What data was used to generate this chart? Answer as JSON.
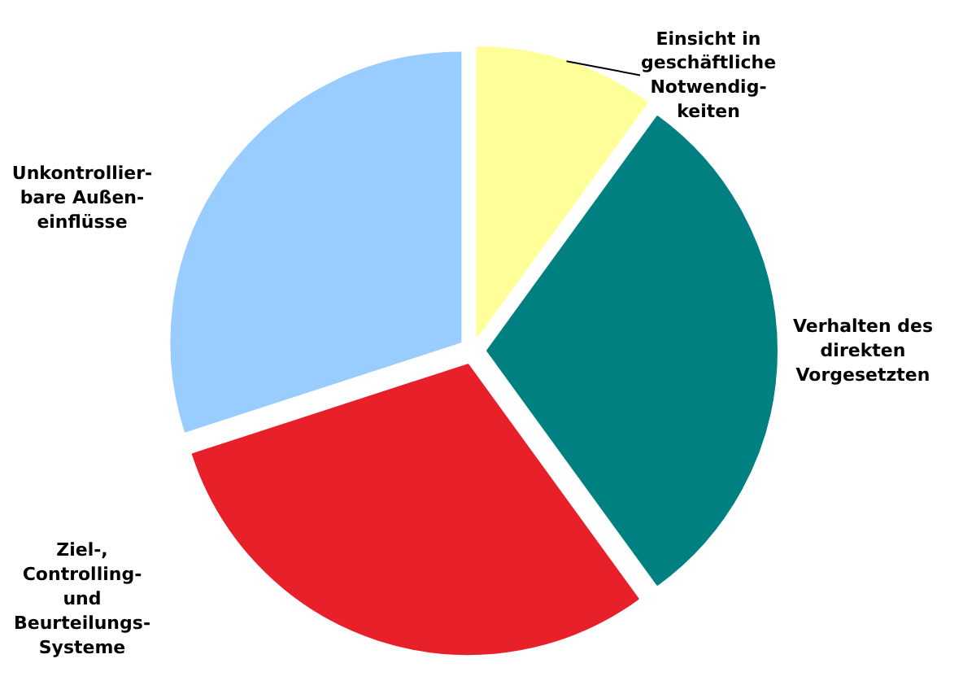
{
  "chart_data": {
    "type": "pie",
    "categories": [
      "Einsicht in\ngeschäftliche\nNotwendig-\nkeiten",
      "Verhalten des\ndirekten\nVorgesetzten",
      "Ziel-,\nControlling-\nund\nBeurteilungs-\nSysteme",
      "Unkontrollier-\nbare Außen-\neinflüsse"
    ],
    "values": [
      10,
      30,
      30,
      30
    ],
    "colors": [
      "#ffff99",
      "#008080",
      "#e8202a",
      "#99ccff"
    ]
  }
}
